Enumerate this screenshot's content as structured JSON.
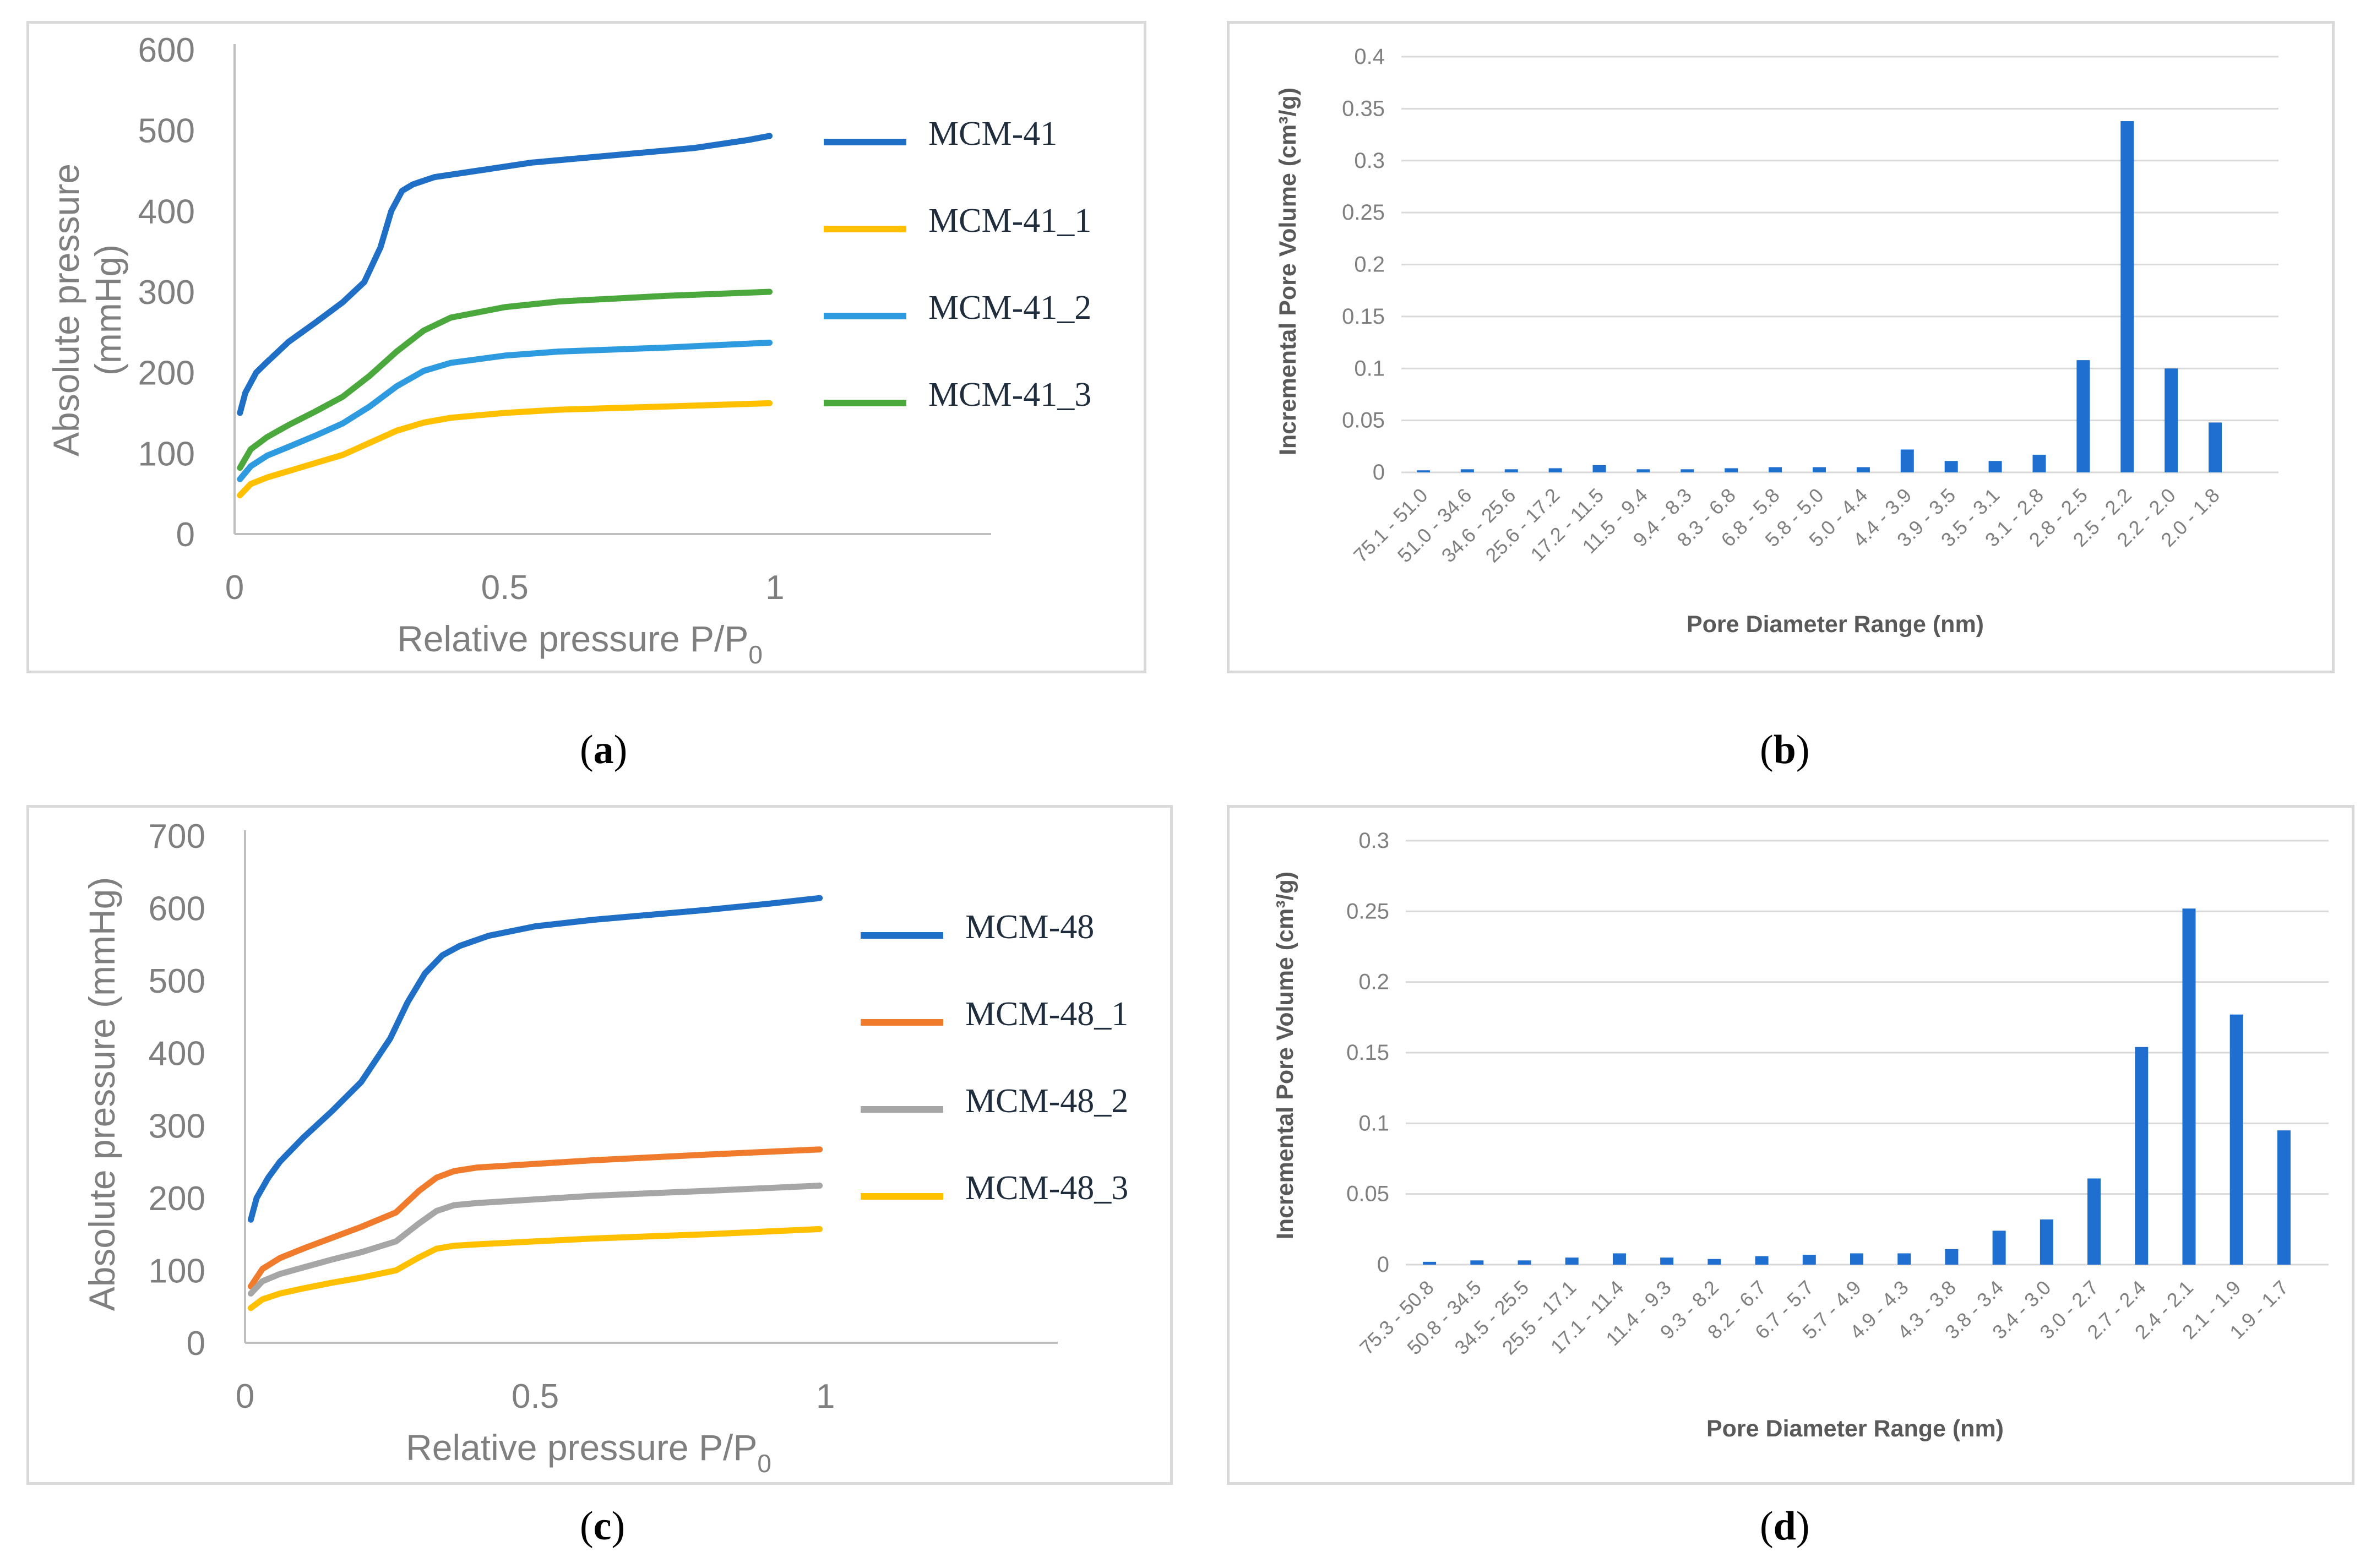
{
  "figure": {
    "captions": [
      "(a)",
      "(b)",
      "(c)",
      "(d)"
    ],
    "caption_labels": [
      "a",
      "b",
      "c",
      "d"
    ]
  },
  "colors": {
    "blue_dark": "#1f6fc6",
    "yellow": "#ffc000",
    "blue_light": "#2e9be0",
    "green": "#4aa83c",
    "orange": "#f07b2c",
    "gray": "#a6a6a6",
    "bar": "#1f6fd1"
  },
  "chart_data": [
    {
      "id": "a",
      "type": "line",
      "xlabel": "Relative pressure P/P",
      "xlabel_sub": "0",
      "ylabel": "Absolute pressure (mmHg)",
      "ylabel_lines": [
        "Absolute pressure",
        "(mmHg)"
      ],
      "xlim": [
        0,
        1.4
      ],
      "ylim": [
        0,
        600
      ],
      "xticks": [
        0,
        0.5,
        1
      ],
      "xtick_labels": [
        "0",
        "0.5",
        "1"
      ],
      "yticks": [
        0,
        100,
        200,
        300,
        400,
        500,
        600
      ],
      "ytick_labels": [
        "0",
        "100",
        "200",
        "300",
        "400",
        "500",
        "600"
      ],
      "legend_position": "right",
      "series": [
        {
          "name": "MCM-41",
          "color": "#1f6fc6",
          "x": [
            0.01,
            0.02,
            0.04,
            0.06,
            0.1,
            0.15,
            0.2,
            0.24,
            0.27,
            0.29,
            0.31,
            0.33,
            0.37,
            0.45,
            0.55,
            0.65,
            0.75,
            0.85,
            0.95,
            0.99
          ],
          "y": [
            150,
            175,
            200,
            213,
            238,
            262,
            287,
            312,
            355,
            400,
            425,
            433,
            442,
            450,
            460,
            466,
            472,
            478,
            488,
            493
          ]
        },
        {
          "name": "MCM-41_1",
          "color": "#ffc000",
          "x": [
            0.01,
            0.03,
            0.06,
            0.1,
            0.15,
            0.2,
            0.25,
            0.3,
            0.35,
            0.4,
            0.5,
            0.6,
            0.8,
            0.99
          ],
          "y": [
            48,
            62,
            70,
            78,
            88,
            98,
            113,
            128,
            138,
            144,
            150,
            154,
            158,
            162
          ]
        },
        {
          "name": "MCM-41_2",
          "color": "#2e9be0",
          "x": [
            0.01,
            0.03,
            0.06,
            0.1,
            0.15,
            0.2,
            0.25,
            0.3,
            0.35,
            0.4,
            0.5,
            0.6,
            0.8,
            0.99
          ],
          "y": [
            68,
            84,
            97,
            108,
            122,
            137,
            158,
            183,
            202,
            212,
            221,
            226,
            231,
            237
          ]
        },
        {
          "name": "MCM-41_3",
          "color": "#4aa83c",
          "x": [
            0.01,
            0.03,
            0.06,
            0.1,
            0.15,
            0.2,
            0.25,
            0.3,
            0.35,
            0.4,
            0.5,
            0.6,
            0.8,
            0.99
          ],
          "y": [
            82,
            105,
            120,
            135,
            152,
            170,
            196,
            226,
            252,
            268,
            281,
            288,
            295,
            300
          ]
        }
      ]
    },
    {
      "id": "b",
      "type": "bar",
      "xlabel": "Pore Diameter Range (nm)",
      "ylabel": "Incremental Pore Volume (cm³/g)",
      "ylim": [
        0,
        0.4
      ],
      "yticks": [
        0,
        0.05,
        0.1,
        0.15,
        0.2,
        0.25,
        0.3,
        0.35,
        0.4
      ],
      "ytick_labels": [
        "0",
        "0.05",
        "0.1",
        "0.15",
        "0.2",
        "0.25",
        "0.3",
        "0.35",
        "0.4"
      ],
      "grid": true,
      "color": "#1f6fd1",
      "categories": [
        "75.1 - 51.0",
        "51.0 - 34.6",
        "34.6 - 25.6",
        "25.6 - 17.2",
        "17.2 - 11.5",
        "11.5 - 9.4",
        "9.4 - 8.3",
        "8.3 - 6.8",
        "6.8 - 5.8",
        "5.8 - 5.0",
        "5.0 - 4.4",
        "4.4 - 3.9",
        "3.9 - 3.5",
        "3.5 - 3.1",
        "3.1 - 2.8",
        "2.8 - 2.5",
        "2.5 - 2.2",
        "2.2 - 2.0",
        "2.0 - 1.8"
      ],
      "values": [
        0.002,
        0.003,
        0.003,
        0.004,
        0.007,
        0.003,
        0.003,
        0.004,
        0.005,
        0.005,
        0.005,
        0.022,
        0.011,
        0.011,
        0.017,
        0.108,
        0.338,
        0.1,
        0.048
      ]
    },
    {
      "id": "c",
      "type": "line",
      "xlabel": "Relative pressure P/P",
      "xlabel_sub": "0",
      "ylabel": "Absolute pressure (mmHg)",
      "ylabel_lines": [
        "Absolute pressure (mmHg)"
      ],
      "xlim": [
        0,
        1.4
      ],
      "ylim": [
        0,
        700
      ],
      "xticks": [
        0,
        0.5,
        1
      ],
      "xtick_labels": [
        "0",
        "0.5",
        "1"
      ],
      "yticks": [
        0,
        100,
        200,
        300,
        400,
        500,
        600,
        700
      ],
      "ytick_labels": [
        "0",
        "100",
        "200",
        "300",
        "400",
        "500",
        "600",
        "700"
      ],
      "legend_position": "right",
      "series": [
        {
          "name": "MCM-48",
          "color": "#1f6fc6",
          "x": [
            0.01,
            0.02,
            0.04,
            0.06,
            0.1,
            0.15,
            0.2,
            0.25,
            0.28,
            0.31,
            0.34,
            0.37,
            0.42,
            0.5,
            0.6,
            0.7,
            0.8,
            0.9,
            0.99
          ],
          "y": [
            170,
            200,
            228,
            250,
            283,
            320,
            360,
            420,
            470,
            510,
            535,
            548,
            562,
            575,
            584,
            591,
            598,
            606,
            614
          ]
        },
        {
          "name": "MCM-48_1",
          "color": "#f07b2c",
          "x": [
            0.01,
            0.03,
            0.06,
            0.1,
            0.15,
            0.2,
            0.26,
            0.3,
            0.33,
            0.36,
            0.4,
            0.5,
            0.6,
            0.8,
            0.99
          ],
          "y": [
            78,
            102,
            117,
            130,
            145,
            160,
            180,
            210,
            228,
            237,
            242,
            247,
            252,
            260,
            267
          ]
        },
        {
          "name": "MCM-48_2",
          "color": "#a6a6a6",
          "x": [
            0.01,
            0.03,
            0.06,
            0.1,
            0.15,
            0.2,
            0.26,
            0.3,
            0.33,
            0.36,
            0.4,
            0.5,
            0.6,
            0.8,
            0.99
          ],
          "y": [
            68,
            85,
            95,
            104,
            115,
            125,
            140,
            165,
            182,
            190,
            193,
            198,
            203,
            210,
            217
          ]
        },
        {
          "name": "MCM-48_3",
          "color": "#ffc000",
          "x": [
            0.01,
            0.03,
            0.06,
            0.1,
            0.15,
            0.2,
            0.26,
            0.3,
            0.33,
            0.36,
            0.4,
            0.5,
            0.6,
            0.8,
            0.99
          ],
          "y": [
            48,
            60,
            68,
            75,
            83,
            90,
            100,
            118,
            130,
            134,
            136,
            140,
            144,
            150,
            157
          ]
        }
      ]
    },
    {
      "id": "d",
      "type": "bar",
      "xlabel": "Pore Diameter Range (nm)",
      "ylabel": "Incremental Pore Volume (cm³/g)",
      "ylim": [
        0,
        0.3
      ],
      "yticks": [
        0,
        0.05,
        0.1,
        0.15,
        0.2,
        0.25,
        0.3
      ],
      "ytick_labels": [
        "0",
        "0.05",
        "0.1",
        "0.15",
        "0.2",
        "0.25",
        "0.3"
      ],
      "grid": true,
      "color": "#1f6fd1",
      "categories": [
        "75.3 - 50.8",
        "50.8 - 34.5",
        "34.5 - 25.5",
        "25.5 - 17.1",
        "17.1 - 11.4",
        "11.4 - 9.3",
        "9.3 - 8.2",
        "8.2 - 6.7",
        "6.7 - 5.7",
        "5.7 - 4.9",
        "4.9 - 4.3",
        "4.3 - 3.8",
        "3.8 - 3.4",
        "3.4 - 3.0",
        "3.0 - 2.7",
        "2.7 - 2.4",
        "2.4 - 2.1",
        "2.1 - 1.9",
        "1.9 - 1.7"
      ],
      "values": [
        0.002,
        0.003,
        0.003,
        0.005,
        0.008,
        0.005,
        0.004,
        0.006,
        0.007,
        0.008,
        0.008,
        0.011,
        0.024,
        0.032,
        0.061,
        0.154,
        0.252,
        0.177,
        0.095
      ]
    }
  ]
}
